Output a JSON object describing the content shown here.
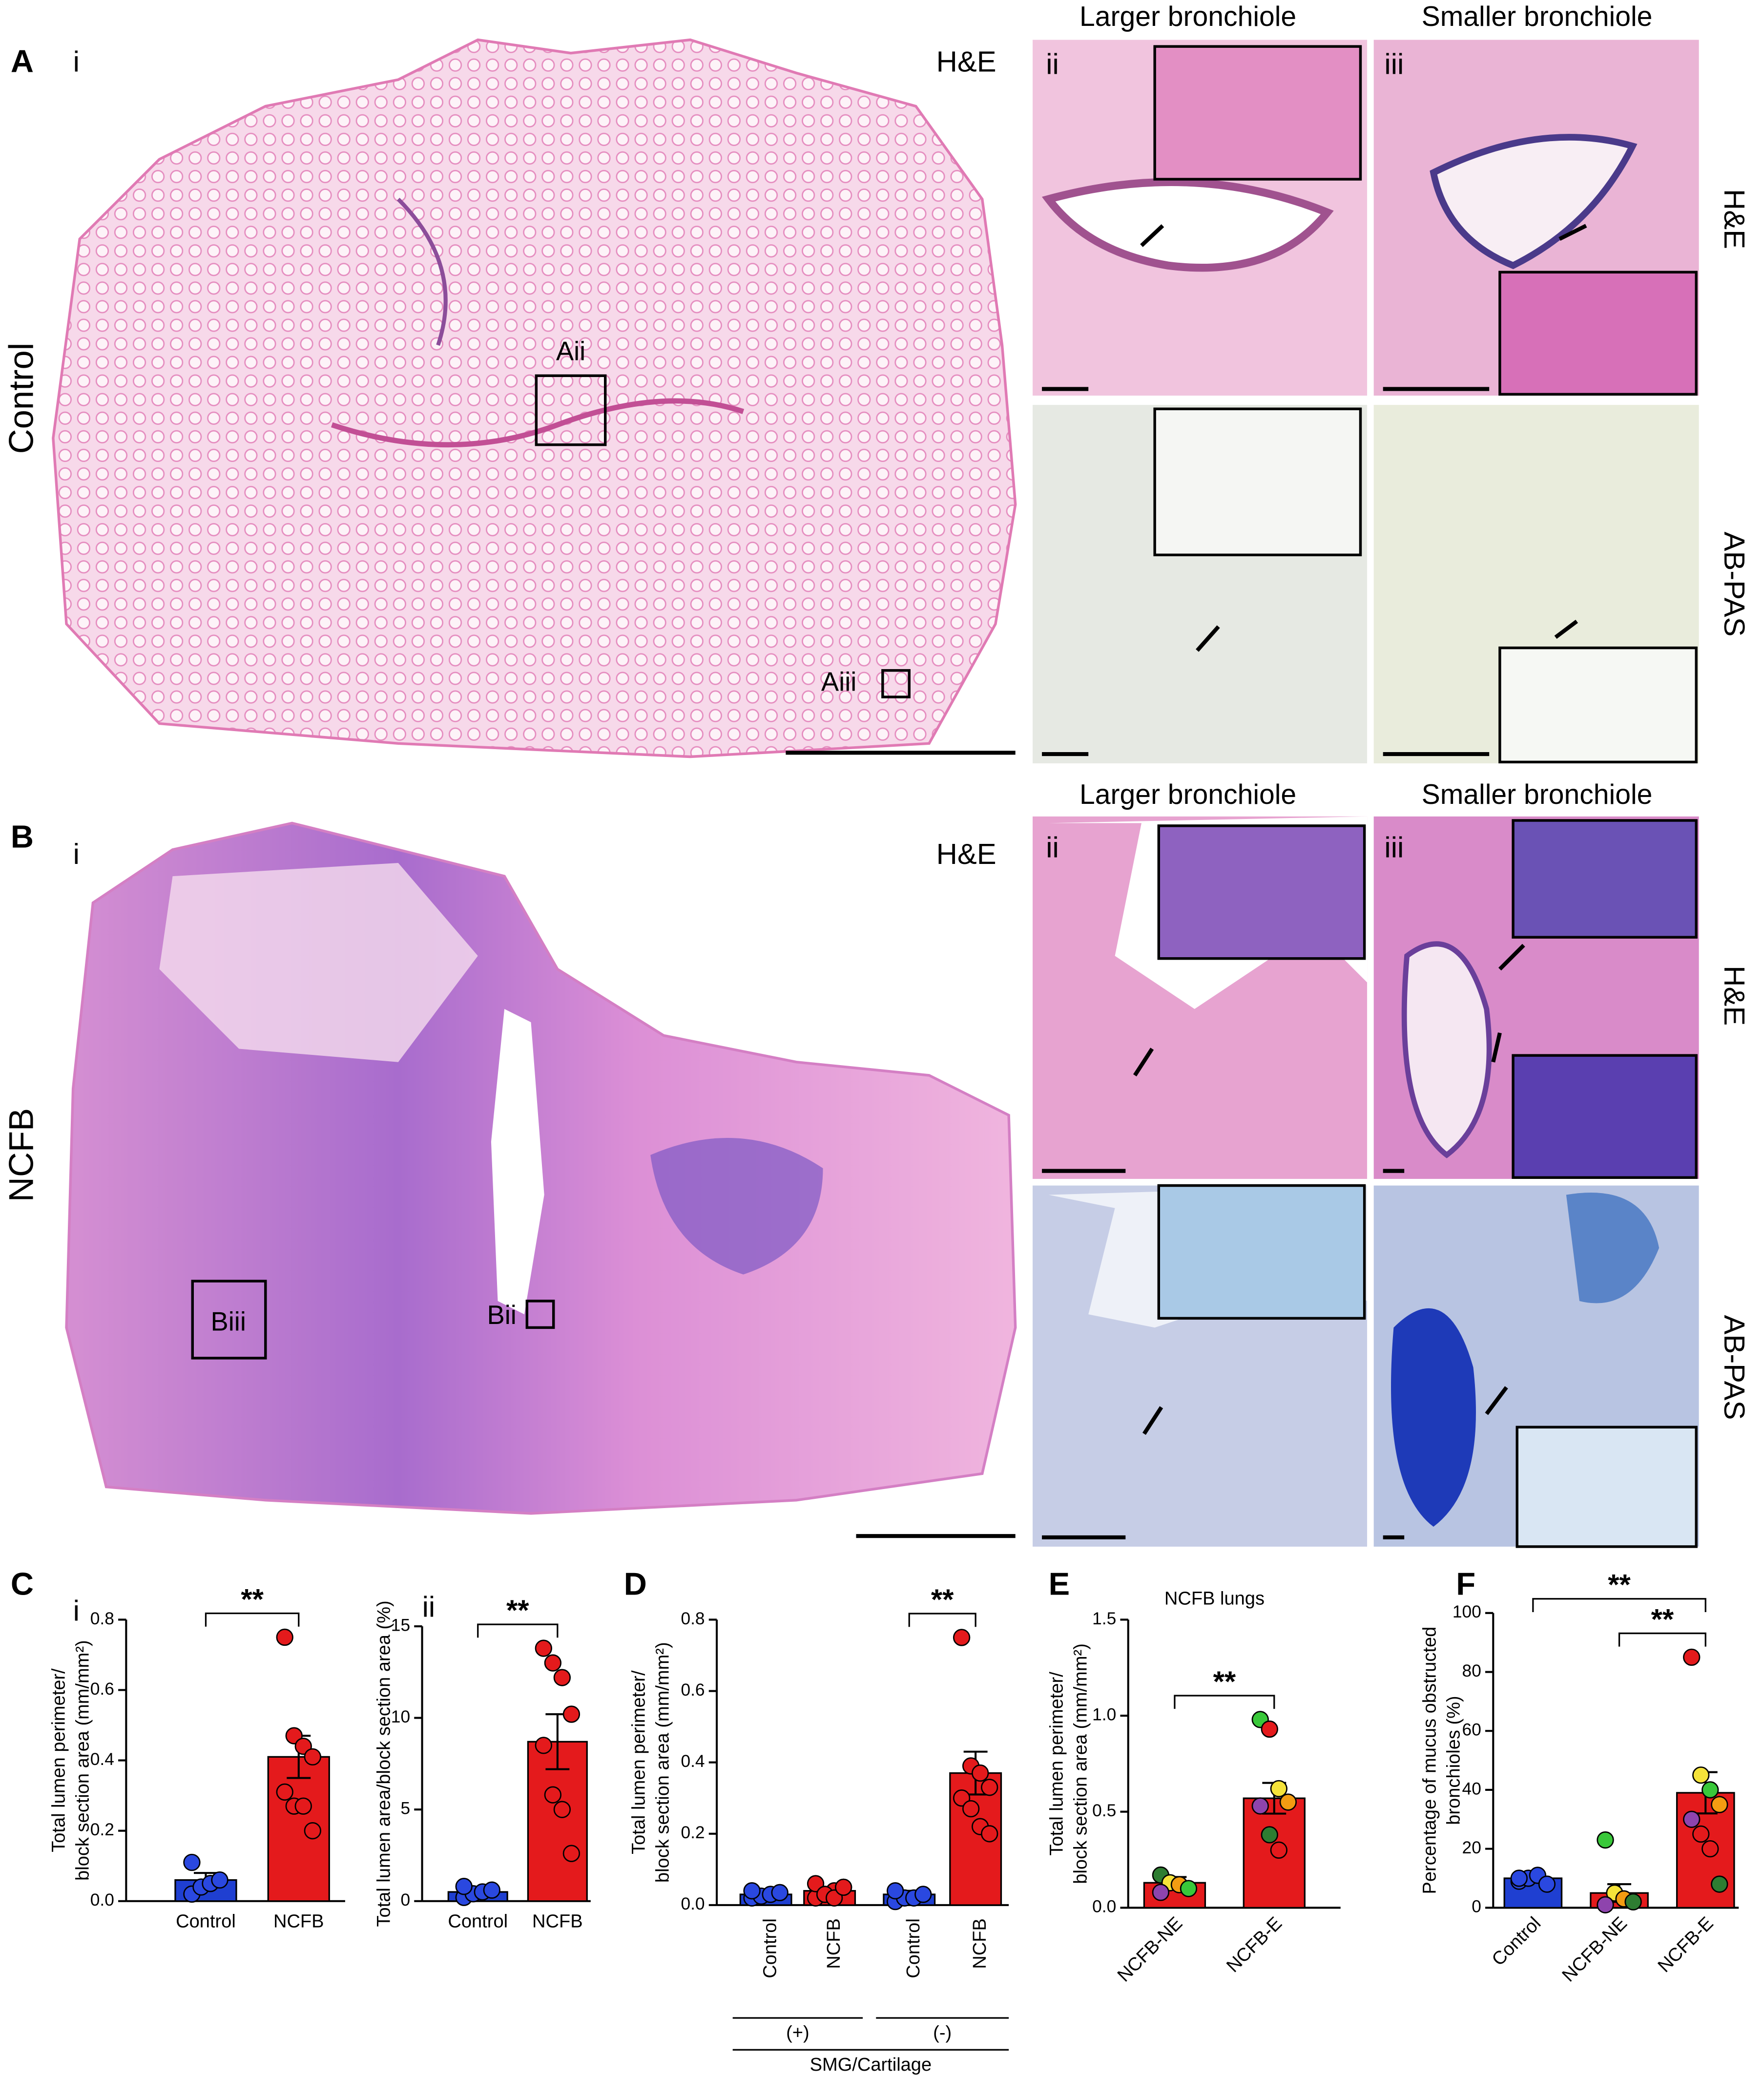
{
  "figure": {
    "A": {
      "label": "A",
      "row_label": "Control",
      "overview": {
        "label": "i",
        "stain": "H&E",
        "boxes": [
          "Aii",
          "Aiii"
        ]
      },
      "columns": [
        {
          "label": "ii",
          "title": "Larger bronchiole"
        },
        {
          "label": "iii",
          "title": "Smaller bronchiole"
        }
      ],
      "stains": [
        "H&E",
        "AB-PAS"
      ]
    },
    "B": {
      "label": "B",
      "row_label": "NCFB",
      "overview": {
        "label": "i",
        "stain": "H&E",
        "boxes": [
          "Biii",
          "Bii"
        ]
      },
      "columns": [
        {
          "label": "ii",
          "title": "Larger bronchiole"
        },
        {
          "label": "iii",
          "title": "Smaller bronchiole"
        }
      ],
      "stains": [
        "H&E",
        "AB-PAS"
      ]
    }
  },
  "chart_data": [
    {
      "type": "bar",
      "panel": "C",
      "sublabel": "i",
      "ylabel": [
        "Total lumen perimeter/",
        "block section area (mm/mm²)"
      ],
      "categories": [
        "Control",
        "NCFB"
      ],
      "values": [
        0.06,
        0.41
      ],
      "errors": [
        0.02,
        0.06
      ],
      "colors": [
        "#1f3fd1",
        "#e41a1c"
      ],
      "points": [
        [
          0.02,
          0.04,
          0.05,
          0.06,
          0.11
        ],
        [
          0.75,
          0.47,
          0.44,
          0.41,
          0.31,
          0.27,
          0.27,
          0.2
        ]
      ],
      "point_colors": [
        [
          "#2a48e0",
          "#2a48e0",
          "#2a48e0",
          "#2a48e0",
          "#2a48e0"
        ],
        [
          "#e41a1c",
          "#e41a1c",
          "#e41a1c",
          "#e41a1c",
          "#e41a1c",
          "#e41a1c",
          "#e41a1c",
          "#e41a1c"
        ]
      ],
      "ylim": [
        0,
        0.8
      ],
      "yticks": [
        {
          "value": 0,
          "label": "0.0"
        },
        0.2,
        0.4,
        0.6,
        0.8
      ],
      "annotations": [
        {
          "text": "**",
          "from": 0,
          "to": 1
        }
      ]
    },
    {
      "type": "bar",
      "sublabel": "ii",
      "ylabel": [
        "Total lumen area/block section area (%)"
      ],
      "categories": [
        "Control",
        "NCFB"
      ],
      "values": [
        0.5,
        8.7
      ],
      "errors": [
        0.2,
        1.5
      ],
      "colors": [
        "#1f3fd1",
        "#e41a1c"
      ],
      "points": [
        [
          0.2,
          0.4,
          0.5,
          0.6,
          0.8
        ],
        [
          13.8,
          13.0,
          12.2,
          10.2,
          8.5,
          5.8,
          5.0,
          2.6
        ]
      ],
      "point_colors": [
        [
          "#2a48e0",
          "#2a48e0",
          "#2a48e0",
          "#2a48e0",
          "#2a48e0"
        ],
        [
          "#e41a1c",
          "#e41a1c",
          "#e41a1c",
          "#e41a1c",
          "#e41a1c",
          "#e41a1c",
          "#e41a1c",
          "#e41a1c"
        ]
      ],
      "ylim": [
        0,
        15
      ],
      "yticks": [
        0,
        5,
        10,
        15
      ],
      "annotations": [
        {
          "text": "**",
          "from": 0,
          "to": 1
        }
      ]
    },
    {
      "type": "bar",
      "panel": "D",
      "ylabel": [
        "Total lumen perimeter/",
        "block section area (mm/mm²)"
      ],
      "categories": [
        "Control",
        "NCFB",
        "Control",
        "NCFB"
      ],
      "values": [
        0.03,
        0.04,
        0.03,
        0.37
      ],
      "errors": [
        0.005,
        0.01,
        0.01,
        0.06
      ],
      "colors": [
        "#1f3fd1",
        "#e41a1c",
        "#1f3fd1",
        "#e41a1c"
      ],
      "points": [
        [
          0.02,
          0.025,
          0.03,
          0.035,
          0.04
        ],
        [
          0.02,
          0.03,
          0.04,
          0.05,
          0.06,
          0.03,
          0.02,
          0.05
        ],
        [
          0.01,
          0.02,
          0.02,
          0.03,
          0.04
        ],
        [
          0.75,
          0.39,
          0.37,
          0.33,
          0.3,
          0.27,
          0.22,
          0.2
        ]
      ],
      "point_colors": [
        [
          "#2a48e0",
          "#2a48e0",
          "#2a48e0",
          "#2a48e0",
          "#2a48e0"
        ],
        [
          "#e41a1c",
          "#e41a1c",
          "#e41a1c",
          "#e41a1c",
          "#e41a1c",
          "#e41a1c",
          "#e41a1c",
          "#e41a1c"
        ],
        [
          "#2a48e0",
          "#2a48e0",
          "#2a48e0",
          "#2a48e0",
          "#2a48e0"
        ],
        [
          "#e41a1c",
          "#e41a1c",
          "#e41a1c",
          "#e41a1c",
          "#e41a1c",
          "#e41a1c",
          "#e41a1c",
          "#e41a1c"
        ]
      ],
      "groups": [
        "(+)",
        "(-)"
      ],
      "group_title": "SMG/Cartilage",
      "ylim": [
        0,
        0.8
      ],
      "yticks": [
        {
          "value": 0,
          "label": "0.0"
        },
        0.2,
        0.4,
        0.6,
        0.8
      ],
      "annotations": [
        {
          "text": "**",
          "from": 2,
          "to": 3
        }
      ]
    },
    {
      "type": "bar",
      "panel": "E",
      "title": "NCFB lungs",
      "ylabel": [
        "Total lumen perimeter/",
        "block section area (mm/mm²)"
      ],
      "categories": [
        "NCFB-NE",
        "NCFB-E"
      ],
      "values": [
        0.13,
        0.57
      ],
      "errors": [
        0.03,
        0.08
      ],
      "colors": [
        "#e41a1c",
        "#e41a1c"
      ],
      "points": [
        [
          0.17,
          0.13,
          0.12,
          0.1,
          0.08
        ],
        [
          0.98,
          0.93,
          0.62,
          0.55,
          0.53,
          0.38,
          0.3
        ]
      ],
      "point_colors": [
        [
          "#2e7d32",
          "#f5e33a",
          "#f39c12",
          "#39c83a",
          "#8e44ad"
        ],
        [
          "#39c83a",
          "#e41a1c",
          "#f5e33a",
          "#f39c12",
          "#8e44ad",
          "#2e7d32",
          "#e41a1c"
        ]
      ],
      "ylim": [
        0,
        1.5
      ],
      "yticks": [
        {
          "value": 0,
          "label": "0.0"
        },
        0.5,
        {
          "value": 1,
          "label": "1.0"
        },
        1.5
      ],
      "annotations": [
        {
          "text": "**",
          "from": 0,
          "to": 1
        }
      ]
    },
    {
      "type": "bar",
      "panel": "F",
      "ylabel": [
        "Percentage of mucus obstructed",
        "bronchioles (%)"
      ],
      "categories": [
        "Control",
        "NCFB-NE",
        "NCFB-E"
      ],
      "values": [
        10,
        5,
        39
      ],
      "errors": [
        1,
        3,
        7
      ],
      "colors": [
        "#1f3fd1",
        "#e41a1c",
        "#e41a1c"
      ],
      "points": [
        [
          9,
          10,
          11,
          8,
          10
        ],
        [
          23,
          5,
          3,
          2,
          1
        ],
        [
          85,
          45,
          40,
          35,
          30,
          25,
          20,
          8
        ]
      ],
      "point_colors": [
        [
          "#2a48e0",
          "#2a48e0",
          "#2a48e0",
          "#2a48e0",
          "#2a48e0"
        ],
        [
          "#39c83a",
          "#f5e33a",
          "#f39c12",
          "#2e7d32",
          "#8e44ad"
        ],
        [
          "#e41a1c",
          "#f5e33a",
          "#39c83a",
          "#f39c12",
          "#8e44ad",
          "#e41a1c",
          "#e41a1c",
          "#2e7d32"
        ]
      ],
      "ylim": [
        0,
        100
      ],
      "yticks": [
        0,
        20,
        40,
        60,
        80,
        100
      ],
      "annotations": [
        {
          "text": "**",
          "from": 0,
          "to": 2
        },
        {
          "text": "**",
          "from": 1,
          "to": 2
        }
      ]
    }
  ]
}
